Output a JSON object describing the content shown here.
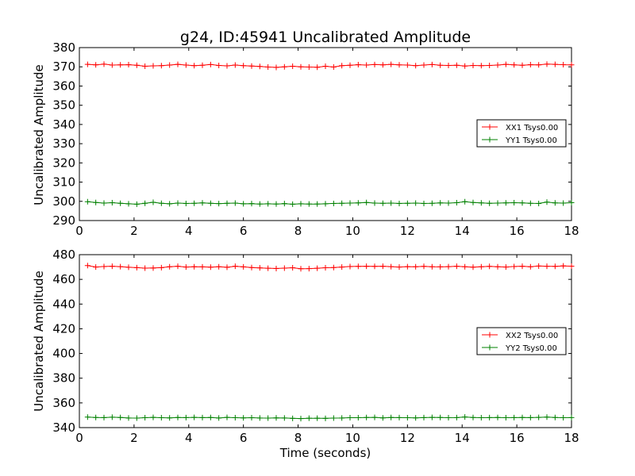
{
  "chart_data": [
    {
      "type": "line",
      "title": "g24, ID:45941 Uncalibrated Amplitude",
      "xlabel": "",
      "ylabel": "Uncalibrated Amplitude",
      "xlim": [
        0,
        18
      ],
      "ylim": [
        290,
        380
      ],
      "xticks": [
        "0",
        "2",
        "4",
        "6",
        "8",
        "10",
        "12",
        "14",
        "16",
        "18"
      ],
      "yticks": [
        "290",
        "300",
        "310",
        "320",
        "330",
        "340",
        "350",
        "360",
        "370",
        "380"
      ],
      "legend_position": "center-right",
      "x": [
        0.3,
        0.6,
        0.9,
        1.2,
        1.5,
        1.8,
        2.1,
        2.4,
        2.7,
        3.0,
        3.3,
        3.6,
        3.9,
        4.2,
        4.5,
        4.8,
        5.1,
        5.4,
        5.7,
        6.0,
        6.3,
        6.6,
        6.9,
        7.2,
        7.5,
        7.8,
        8.1,
        8.4,
        8.7,
        9.0,
        9.3,
        9.6,
        9.9,
        10.2,
        10.5,
        10.8,
        11.1,
        11.4,
        11.7,
        12.0,
        12.3,
        12.6,
        12.9,
        13.2,
        13.5,
        13.8,
        14.1,
        14.4,
        14.7,
        15.0,
        15.3,
        15.6,
        15.9,
        16.2,
        16.5,
        16.8,
        17.1,
        17.4,
        17.7,
        18.0
      ],
      "series": [
        {
          "name": "XX1 Tsys0.00",
          "color": "#ff0000",
          "values": [
            371.3,
            371.0,
            371.4,
            370.9,
            371.0,
            371.1,
            370.8,
            370.3,
            370.5,
            370.6,
            370.9,
            371.3,
            370.9,
            370.6,
            370.8,
            371.2,
            370.7,
            370.5,
            370.9,
            370.6,
            370.4,
            370.2,
            369.9,
            369.7,
            370.0,
            370.3,
            370.0,
            369.9,
            369.8,
            370.3,
            369.9,
            370.6,
            370.8,
            371.1,
            370.9,
            371.2,
            371.0,
            371.3,
            371.0,
            370.9,
            370.6,
            370.9,
            371.2,
            370.8,
            370.7,
            370.8,
            370.4,
            370.7,
            370.6,
            370.7,
            370.9,
            371.3,
            371.0,
            370.8,
            371.1,
            371.0,
            371.4,
            371.3,
            371.1,
            371.0
          ]
        },
        {
          "name": "YY1 Tsys0.00",
          "color": "#008000",
          "values": [
            299.8,
            299.4,
            299.1,
            299.3,
            299.0,
            298.7,
            298.5,
            299.0,
            299.5,
            299.0,
            298.7,
            299.1,
            298.9,
            299.0,
            299.2,
            299.0,
            298.8,
            299.0,
            299.1,
            298.7,
            298.8,
            298.6,
            298.7,
            298.6,
            298.8,
            298.5,
            298.7,
            298.6,
            298.6,
            298.7,
            298.9,
            299.0,
            299.1,
            299.2,
            299.4,
            299.1,
            299.0,
            299.1,
            298.9,
            299.0,
            299.1,
            298.9,
            299.0,
            299.2,
            299.1,
            299.3,
            299.8,
            299.4,
            299.2,
            299.0,
            299.1,
            299.2,
            299.3,
            299.2,
            299.0,
            298.9,
            299.6,
            299.2,
            299.1,
            299.3
          ]
        }
      ]
    },
    {
      "type": "line",
      "title": "",
      "xlabel": "Time (seconds)",
      "ylabel": "Uncalibrated Amplitude",
      "xlim": [
        0,
        18
      ],
      "ylim": [
        340,
        480
      ],
      "xticks": [
        "0",
        "2",
        "4",
        "6",
        "8",
        "10",
        "12",
        "14",
        "16",
        "18"
      ],
      "yticks": [
        "340",
        "360",
        "380",
        "400",
        "420",
        "440",
        "460",
        "480"
      ],
      "legend_position": "center-right",
      "x": [
        0.3,
        0.6,
        0.9,
        1.2,
        1.5,
        1.8,
        2.1,
        2.4,
        2.7,
        3.0,
        3.3,
        3.6,
        3.9,
        4.2,
        4.5,
        4.8,
        5.1,
        5.4,
        5.7,
        6.0,
        6.3,
        6.6,
        6.9,
        7.2,
        7.5,
        7.8,
        8.1,
        8.4,
        8.7,
        9.0,
        9.3,
        9.6,
        9.9,
        10.2,
        10.5,
        10.8,
        11.1,
        11.4,
        11.7,
        12.0,
        12.3,
        12.6,
        12.9,
        13.2,
        13.5,
        13.8,
        14.1,
        14.4,
        14.7,
        15.0,
        15.3,
        15.6,
        15.9,
        16.2,
        16.5,
        16.8,
        17.1,
        17.4,
        17.7,
        18.0
      ],
      "series": [
        {
          "name": "XX2 Tsys0.00",
          "color": "#ff0000",
          "values": [
            471.2,
            470.0,
            470.4,
            470.6,
            470.3,
            469.8,
            469.5,
            469.1,
            469.2,
            469.5,
            470.2,
            470.6,
            470.0,
            470.2,
            470.1,
            469.9,
            470.2,
            469.8,
            470.6,
            470.1,
            469.6,
            469.3,
            469.0,
            468.8,
            469.1,
            469.4,
            468.6,
            468.7,
            469.0,
            469.4,
            469.6,
            470.0,
            470.4,
            470.5,
            470.6,
            470.5,
            470.6,
            470.3,
            470.0,
            470.3,
            470.2,
            470.5,
            470.2,
            470.1,
            470.3,
            470.6,
            470.2,
            469.9,
            470.2,
            470.5,
            470.2,
            470.0,
            470.4,
            470.6,
            470.2,
            470.8,
            470.6,
            470.5,
            470.9,
            470.7
          ]
        },
        {
          "name": "YY2 Tsys0.00",
          "color": "#008000",
          "values": [
            348.5,
            348.2,
            348.1,
            348.4,
            348.2,
            347.8,
            347.7,
            348.0,
            348.3,
            348.0,
            347.9,
            348.2,
            348.1,
            348.3,
            348.1,
            348.2,
            347.8,
            348.3,
            348.0,
            347.9,
            348.0,
            347.8,
            347.7,
            347.9,
            347.8,
            347.5,
            347.3,
            347.6,
            347.6,
            347.5,
            347.7,
            347.8,
            348.0,
            348.0,
            348.2,
            348.3,
            347.9,
            348.2,
            348.1,
            348.0,
            347.9,
            348.1,
            348.3,
            348.2,
            348.0,
            348.1,
            348.6,
            348.2,
            348.0,
            348.1,
            348.2,
            348.0,
            348.1,
            348.2,
            348.1,
            348.3,
            348.5,
            348.2,
            348.0,
            348.1
          ]
        }
      ]
    }
  ]
}
